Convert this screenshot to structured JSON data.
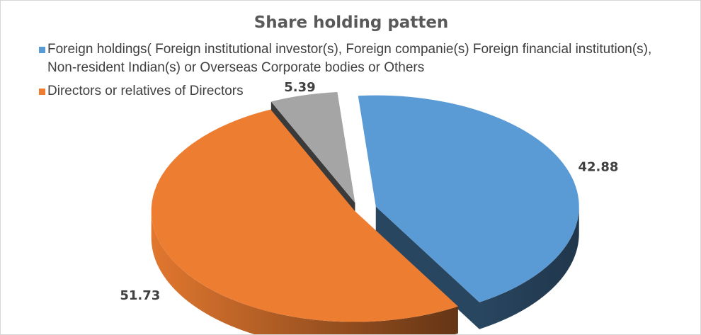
{
  "chart_data": {
    "type": "pie",
    "title": "Share holding patten",
    "categories": [
      "Foreign holdings( Foreign institutional investor(s), Foreign companie(s) Foreign financial institution(s), Non-resident Indian(s) or Overseas Corporate bodies or Others",
      "Directors or relatives of Directors",
      ""
    ],
    "values": [
      42.88,
      51.73,
      5.39
    ],
    "data_labels": [
      "42.88",
      "51.73",
      "5.39"
    ],
    "colors": [
      "#5b9bd5",
      "#ed7d31",
      "#a5a5a5"
    ],
    "style": "3d-exploded",
    "legend_position": "top-left"
  }
}
